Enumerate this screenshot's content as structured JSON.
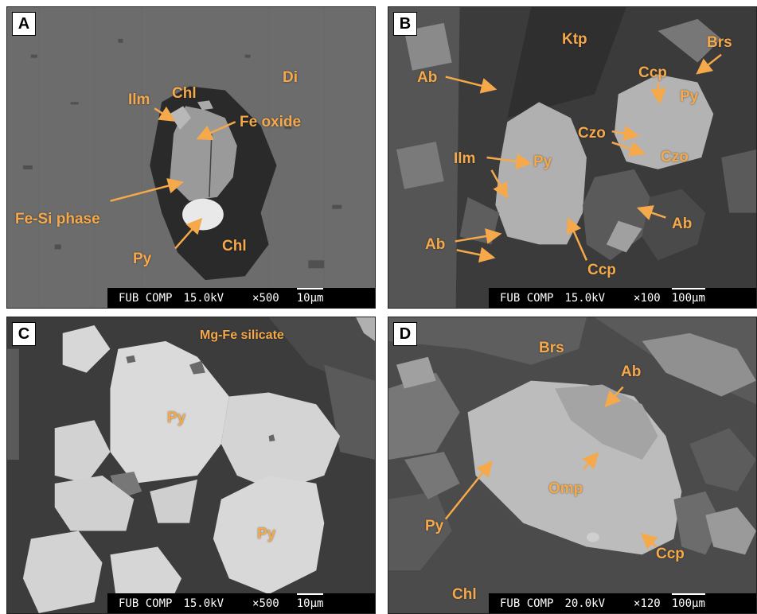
{
  "panels": {
    "a": {
      "letter": "A",
      "labels": {
        "chl_top": "Chl",
        "ilm": "Ilm",
        "di": "Di",
        "fe_oxide": "Fe oxide",
        "fe_si": "Fe-Si phase",
        "py": "Py",
        "chl_bottom": "Chl"
      },
      "databar": {
        "mode": "FUB COMP",
        "voltage": "15.0kV",
        "magnification": "×500",
        "scale": "10μm"
      }
    },
    "b": {
      "letter": "B",
      "labels": {
        "ab1": "Ab",
        "ktp": "Ktp",
        "brs": "Brs",
        "ccp1": "Ccp",
        "py1": "Py",
        "czo1": "Czo",
        "ilm": "Ilm",
        "py2": "Py",
        "czo2": "Czo",
        "ab2": "Ab",
        "ab3": "Ab",
        "ccp2": "Ccp"
      },
      "databar": {
        "mode": "FUB COMP",
        "voltage": "15.0kV",
        "magnification": "×100",
        "scale": "100μm"
      }
    },
    "c": {
      "letter": "C",
      "labels": {
        "mgfe": "Mg-Fe silicate",
        "py1": "Py",
        "py2": "Py"
      },
      "databar": {
        "mode": "FUB COMP",
        "voltage": "15.0kV",
        "magnification": "×500",
        "scale": "10μm"
      }
    },
    "d": {
      "letter": "D",
      "labels": {
        "brs": "Brs",
        "ab": "Ab",
        "py": "Py",
        "omp": "Omp",
        "ccp": "Ccp",
        "chl": "Chl"
      },
      "databar": {
        "mode": "FUB COMP",
        "voltage": "20.0kV",
        "magnification": "×120",
        "scale": "100μm"
      }
    }
  },
  "colors": {
    "label": "#f5a94a",
    "arrow": "#f5a94a",
    "databar_bg": "#000000",
    "databar_text": "#ffffff"
  }
}
